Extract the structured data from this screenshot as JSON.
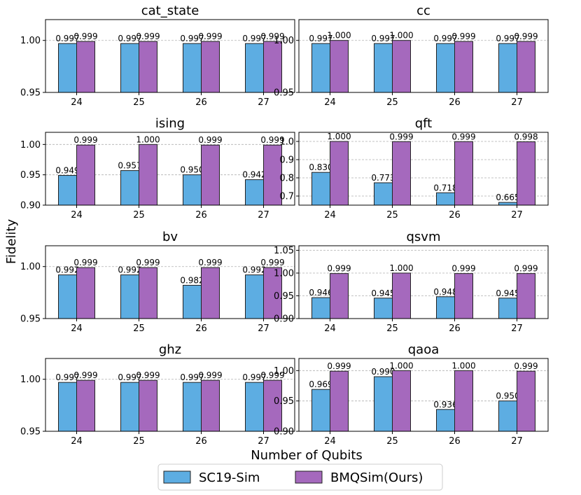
{
  "chart_data": {
    "type": "bar",
    "xlabel": "Number of Qubits",
    "ylabel": "Fidelity",
    "legend": {
      "placement": "bottom-center",
      "entries": [
        {
          "name": "SC19-Sim",
          "color": "#5dade2"
        },
        {
          "name": "BMQSim(Ours)",
          "color": "#a569bd"
        }
      ]
    },
    "categories": [
      "24",
      "25",
      "26",
      "27"
    ],
    "panels": [
      {
        "title": "cat_state",
        "ylim": [
          0.95,
          1.02
        ],
        "yticks": [
          "0.95",
          "1.00"
        ],
        "ytick_values": [
          0.95,
          1.0
        ],
        "grid": [
          1.0
        ],
        "series": [
          {
            "name": "SC19-Sim",
            "values": [
              0.997,
              0.997,
              0.997,
              0.997
            ],
            "labels": [
              "0.997",
              "0.997",
              "0.997",
              "0.997"
            ]
          },
          {
            "name": "BMQSim(Ours)",
            "values": [
              0.999,
              0.999,
              0.999,
              0.999
            ],
            "labels": [
              "0.999",
              "0.999",
              "0.999",
              "0.999"
            ]
          }
        ]
      },
      {
        "title": "cc",
        "ylim": [
          0.95,
          1.02
        ],
        "yticks": [
          "0.95",
          "1.00"
        ],
        "ytick_values": [
          0.95,
          1.0
        ],
        "grid": [
          1.0
        ],
        "series": [
          {
            "name": "SC19-Sim",
            "values": [
              0.997,
              0.997,
              0.997,
              0.997
            ],
            "labels": [
              "0.997",
              "0.997",
              "0.997",
              "0.997"
            ]
          },
          {
            "name": "BMQSim(Ours)",
            "values": [
              1.0,
              1.0,
              0.999,
              0.999
            ],
            "labels": [
              "1.000",
              "1.000",
              "0.999",
              "0.999"
            ]
          }
        ]
      },
      {
        "title": "ising",
        "ylim": [
          0.9,
          1.02
        ],
        "yticks": [
          "0.90",
          "0.95",
          "1.00"
        ],
        "ytick_values": [
          0.9,
          0.95,
          1.0
        ],
        "grid": [
          0.95,
          1.0
        ],
        "series": [
          {
            "name": "SC19-Sim",
            "values": [
              0.949,
              0.957,
              0.95,
              0.942
            ],
            "labels": [
              "0.949",
              "0.957",
              "0.950",
              "0.942"
            ]
          },
          {
            "name": "BMQSim(Ours)",
            "values": [
              0.999,
              1.0,
              0.999,
              0.999
            ],
            "labels": [
              "0.999",
              "1.000",
              "0.999",
              "0.999"
            ]
          }
        ]
      },
      {
        "title": "qft",
        "ylim": [
          0.65,
          1.05
        ],
        "yticks": [
          "0.7",
          "0.8",
          "0.9",
          "1.0"
        ],
        "ytick_values": [
          0.7,
          0.8,
          0.9,
          1.0
        ],
        "grid": [
          0.7,
          0.8,
          0.9,
          1.0
        ],
        "series": [
          {
            "name": "SC19-Sim",
            "values": [
              0.83,
              0.773,
              0.718,
              0.665
            ],
            "labels": [
              "0.830",
              "0.773",
              "0.718",
              "0.665"
            ]
          },
          {
            "name": "BMQSim(Ours)",
            "values": [
              1.0,
              0.999,
              0.999,
              0.998
            ],
            "labels": [
              "1.000",
              "0.999",
              "0.999",
              "0.998"
            ]
          }
        ]
      },
      {
        "title": "bv",
        "ylim": [
          0.95,
          1.02
        ],
        "yticks": [
          "0.95",
          "1.00"
        ],
        "ytick_values": [
          0.95,
          1.0
        ],
        "grid": [
          1.0
        ],
        "series": [
          {
            "name": "SC19-Sim",
            "values": [
              0.992,
              0.992,
              0.982,
              0.992
            ],
            "labels": [
              "0.992",
              "0.992",
              "0.982",
              "0.992"
            ]
          },
          {
            "name": "BMQSim(Ours)",
            "values": [
              0.999,
              0.999,
              0.999,
              0.999
            ],
            "labels": [
              "0.999",
              "0.999",
              "0.999",
              "0.999"
            ]
          }
        ]
      },
      {
        "title": "qsvm",
        "ylim": [
          0.9,
          1.06
        ],
        "yticks": [
          "0.90",
          "0.95",
          "1.00",
          "1.05"
        ],
        "ytick_values": [
          0.9,
          0.95,
          1.0,
          1.05
        ],
        "grid": [
          0.95,
          1.0,
          1.05
        ],
        "series": [
          {
            "name": "SC19-Sim",
            "values": [
              0.946,
              0.945,
              0.948,
              0.945
            ],
            "labels": [
              "0.946",
              "0.945",
              "0.948",
              "0.945"
            ]
          },
          {
            "name": "BMQSim(Ours)",
            "values": [
              0.999,
              1.0,
              0.999,
              0.999
            ],
            "labels": [
              "0.999",
              "1.000",
              "0.999",
              "0.999"
            ]
          }
        ]
      },
      {
        "title": "ghz",
        "ylim": [
          0.95,
          1.02
        ],
        "yticks": [
          "0.95",
          "1.00"
        ],
        "ytick_values": [
          0.95,
          1.0
        ],
        "grid": [
          1.0
        ],
        "series": [
          {
            "name": "SC19-Sim",
            "values": [
              0.997,
              0.997,
              0.997,
              0.997
            ],
            "labels": [
              "0.997",
              "0.997",
              "0.997",
              "0.997"
            ]
          },
          {
            "name": "BMQSim(Ours)",
            "values": [
              0.999,
              0.999,
              0.999,
              0.999
            ],
            "labels": [
              "0.999",
              "0.999",
              "0.999",
              "0.999"
            ]
          }
        ]
      },
      {
        "title": "qaoa",
        "ylim": [
          0.9,
          1.02
        ],
        "yticks": [
          "0.90",
          "0.95",
          "1.00"
        ],
        "ytick_values": [
          0.9,
          0.95,
          1.0
        ],
        "grid": [
          0.95,
          1.0
        ],
        "series": [
          {
            "name": "SC19-Sim",
            "values": [
              0.969,
              0.99,
              0.936,
              0.95
            ],
            "labels": [
              "0.969",
              "0.990",
              "0.936",
              "0.950"
            ]
          },
          {
            "name": "BMQSim(Ours)",
            "values": [
              0.999,
              1.0,
              1.0,
              0.999
            ],
            "labels": [
              "0.999",
              "1.000",
              "1.000",
              "0.999"
            ]
          }
        ]
      }
    ]
  }
}
